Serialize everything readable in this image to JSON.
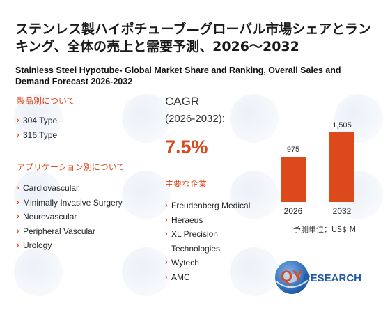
{
  "title_jp": "ステンレス製ハイポチューブ—グローバル市場シェアとランキング、全体の売上と需要予測、2026～2032",
  "title_en": "Stainless Steel Hypotube- Global Market Share and Ranking, Overall Sales and Demand Forecast 2026-2032",
  "product_section": {
    "heading": "製品別について",
    "items": [
      "304 Type",
      "316 Type"
    ]
  },
  "application_section": {
    "heading": "アプリケーション別について",
    "items": [
      "Cardiovascular",
      "Minimally Invasive Surgery",
      "Neurovascular",
      "Peripheral Vascular",
      "Urology"
    ]
  },
  "cagr": {
    "label": "CAGR",
    "range": "(2026-2032):",
    "value": "7.5%"
  },
  "companies_section": {
    "heading": "主要な企業",
    "items": [
      "Freudenberg Medical",
      "Heraeus",
      "XL Precision Technologies",
      "Wytech",
      "AMC"
    ]
  },
  "chart_data": {
    "type": "bar",
    "categories": [
      "2026",
      "2032"
    ],
    "values": [
      975,
      1505
    ],
    "value_labels": [
      "975",
      "1,505"
    ],
    "unit_label": "予測単位：US$ M",
    "bar_color": "#dc4a1c"
  },
  "logo": {
    "text_main": "QYRESEARCH",
    "accent_color": "#d94a1e",
    "brand_color": "#1e5aa8"
  },
  "chevron": "›"
}
